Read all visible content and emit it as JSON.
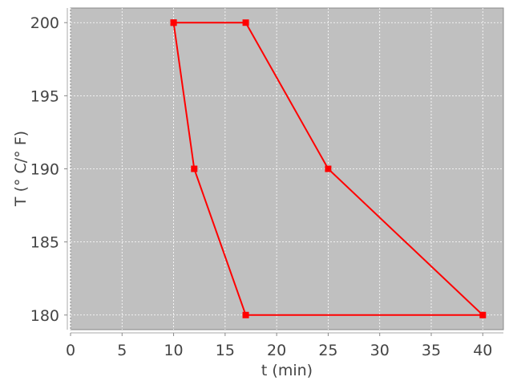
{
  "chart_data": {
    "type": "line",
    "title": "",
    "xlabel": "t (min)",
    "ylabel": "T (° C/° F)",
    "xlim": [
      0,
      42
    ],
    "ylim": [
      179,
      201
    ],
    "xticks": [
      0,
      5,
      10,
      15,
      20,
      25,
      30,
      35,
      40
    ],
    "yticks": [
      180,
      185,
      190,
      195,
      200
    ],
    "grid": true,
    "legend": "none",
    "series": [
      {
        "x": [
          10,
          17,
          25,
          40,
          17,
          12,
          10
        ],
        "y": [
          200,
          200,
          190,
          180,
          180,
          190,
          200
        ],
        "color": "#ff0000",
        "marker": "square"
      }
    ],
    "colors": {
      "plot_background": "#c0c0c0",
      "grid": "#ffffff",
      "series": "#ff0000"
    }
  }
}
